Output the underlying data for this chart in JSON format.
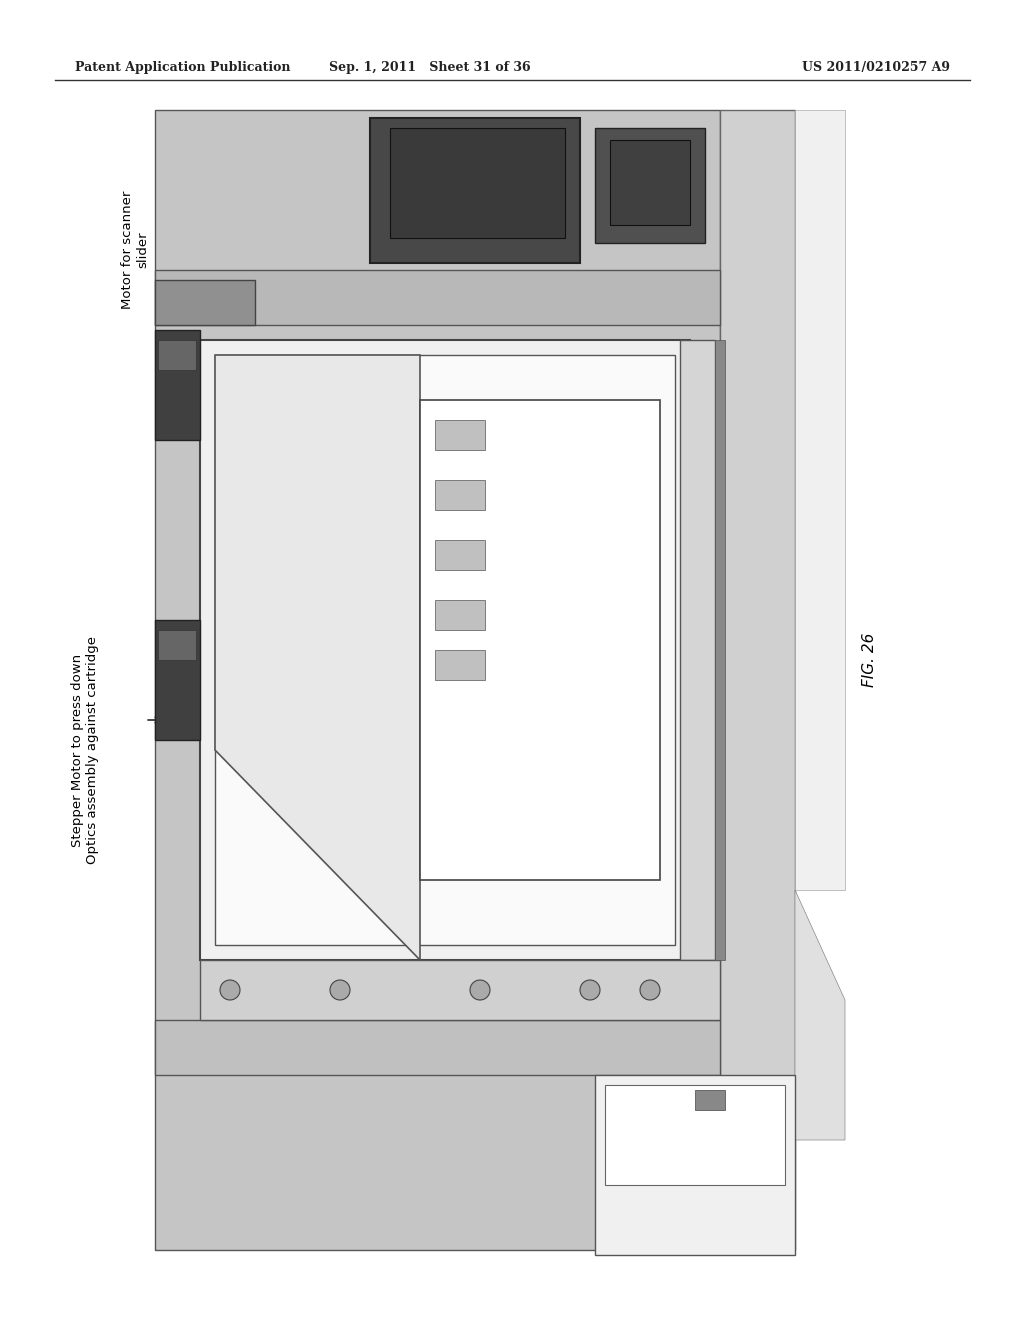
{
  "header_left": "Patent Application Publication",
  "header_center": "Sep. 1, 2011   Sheet 31 of 36",
  "header_right": "US 2011/0210257 A9",
  "fig_label": "FIG. 26",
  "bg_color": "#ffffff",
  "page_bg": "#ffffff",
  "diagram_gray": "#c0c0c0",
  "diagram_light_gray": "#d8d8d8",
  "diagram_white": "#f5f5f5",
  "diagram_dark": "#3a3a3a",
  "diagram_mid": "#888888"
}
